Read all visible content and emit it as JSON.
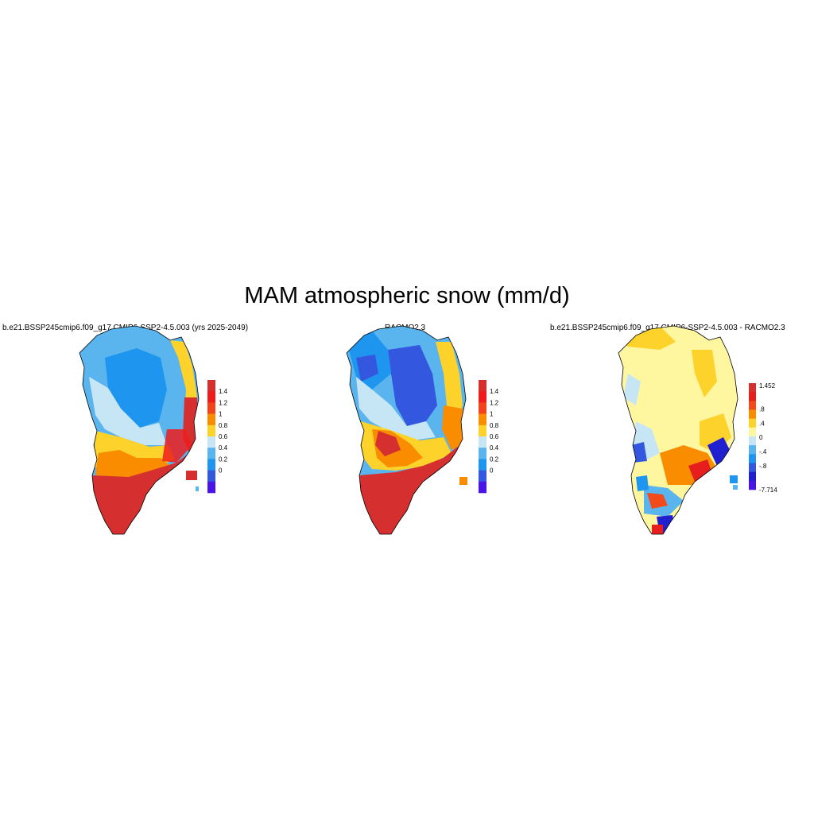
{
  "figure": {
    "title": "MAM atmospheric snow (mm/d)"
  },
  "panels": [
    {
      "id": "model",
      "title": "b.e21.BSSP245cmip6.f09_g17.CMIP6-SSP2-4.5.003 (yrs 2025-2049)",
      "colorbar": {
        "labels": [
          "1.4",
          "1.2",
          "1",
          "0.8",
          "0.6",
          "0.4",
          "0.2",
          "0"
        ],
        "colors": [
          "#d62f2f",
          "#ee1c1c",
          "#f2431b",
          "#fa8c00",
          "#fdd22a",
          "#c7e6f5",
          "#5ab4ee",
          "#1e96f0",
          "#3457e0",
          "#4a14e6"
        ]
      }
    },
    {
      "id": "racmo",
      "title": "RACMO2.3",
      "colorbar": {
        "labels": [
          "1.4",
          "1.2",
          "1",
          "0.8",
          "0.6",
          "0.4",
          "0.2",
          "0"
        ],
        "colors": [
          "#d62f2f",
          "#ee1c1c",
          "#f2431b",
          "#fa8c00",
          "#fdd22a",
          "#c7e6f5",
          "#5ab4ee",
          "#1e96f0",
          "#3457e0",
          "#4a14e6"
        ]
      }
    },
    {
      "id": "difference",
      "title": "b.e21.BSSP245cmip6.f09_g17.CMIP6-SSP2-4.5.003 - RACMO2.3",
      "colorbar": {
        "labels": [
          "1.452",
          ".8",
          ".4",
          "0",
          "-.4",
          "-.8",
          "-7.714"
        ],
        "colors": [
          "#d62f2f",
          "#e61e1e",
          "#f24a1b",
          "#fa8c00",
          "#fdd22a",
          "#fff6a0",
          "#c7e6f5",
          "#5ab4ee",
          "#1e96f0",
          "#3457e0",
          "#2020d0",
          "#4a14e6"
        ]
      }
    }
  ],
  "palette": {
    "red_dark": "#d62f2f",
    "red": "#ee1c1c",
    "orange": "#fa8c00",
    "yellow": "#fdd22a",
    "pale_yellow": "#fff6a0",
    "light_blue": "#c7e6f5",
    "sky_blue": "#5ab4ee",
    "blue": "#1e96f0",
    "royal_blue": "#3457e0",
    "violet": "#4a14e6"
  }
}
